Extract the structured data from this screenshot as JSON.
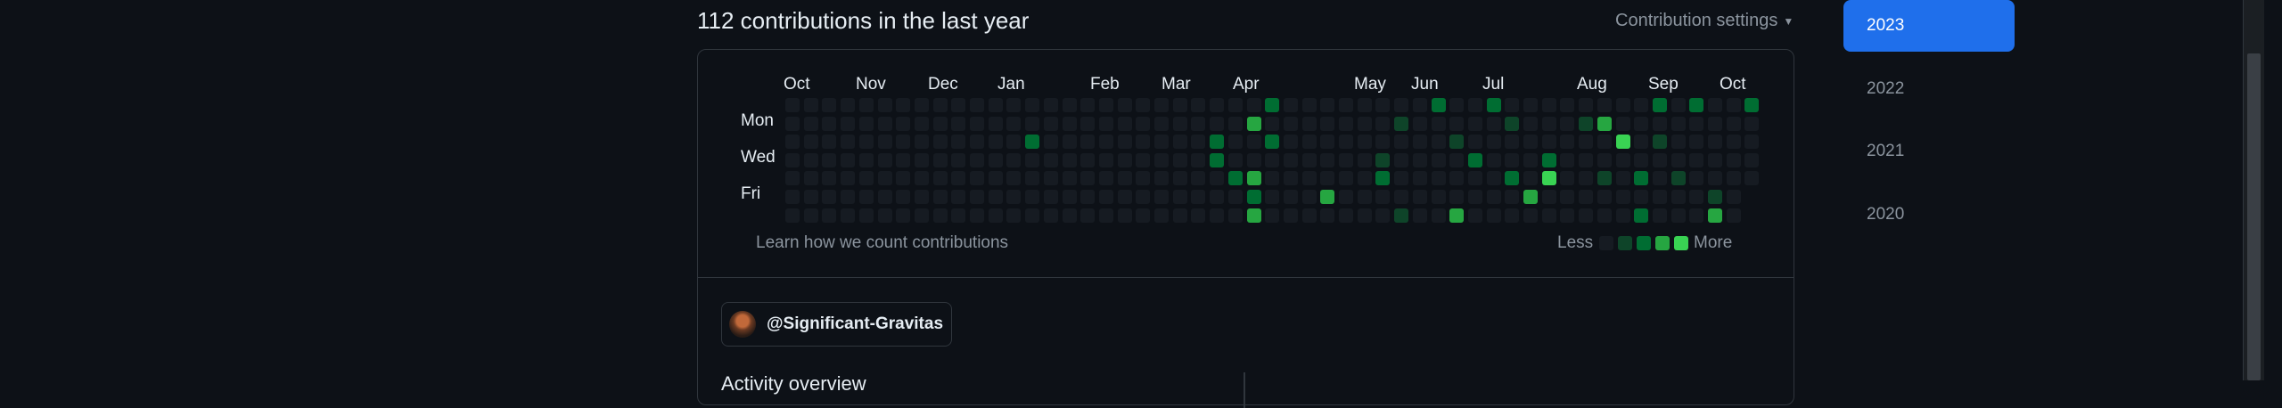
{
  "header": {
    "contributions_title": "112 contributions in the last year",
    "settings_label": "Contribution settings"
  },
  "calendar": {
    "months": [
      "Oct",
      "Nov",
      "Dec",
      "Jan",
      "Feb",
      "Mar",
      "Apr",
      "May",
      "Jun",
      "Jul",
      "Aug",
      "Sep",
      "Oct"
    ],
    "day_labels": [
      "Mon",
      "Wed",
      "Fri"
    ],
    "learn_link": "Learn how we count contributions",
    "legend_less": "Less",
    "legend_more": "More",
    "levels": [
      "#161b22",
      "#0e4429",
      "#006d32",
      "#26a641",
      "#39d353"
    ],
    "contributions": [
      {
        "week": 26,
        "day": 0,
        "level": 2
      },
      {
        "week": 35,
        "day": 0,
        "level": 2
      },
      {
        "week": 38,
        "day": 0,
        "level": 2
      },
      {
        "week": 47,
        "day": 0,
        "level": 2
      },
      {
        "week": 49,
        "day": 0,
        "level": 2
      },
      {
        "week": 52,
        "day": 0,
        "level": 2
      },
      {
        "week": 25,
        "day": 1,
        "level": 3
      },
      {
        "week": 33,
        "day": 1,
        "level": 1
      },
      {
        "week": 39,
        "day": 1,
        "level": 1
      },
      {
        "week": 43,
        "day": 1,
        "level": 1
      },
      {
        "week": 44,
        "day": 1,
        "level": 3
      },
      {
        "week": 13,
        "day": 2,
        "level": 2
      },
      {
        "week": 23,
        "day": 2,
        "level": 2
      },
      {
        "week": 26,
        "day": 2,
        "level": 2
      },
      {
        "week": 36,
        "day": 2,
        "level": 1
      },
      {
        "week": 45,
        "day": 2,
        "level": 4
      },
      {
        "week": 47,
        "day": 2,
        "level": 1
      },
      {
        "week": 23,
        "day": 3,
        "level": 2
      },
      {
        "week": 32,
        "day": 3,
        "level": 1
      },
      {
        "week": 37,
        "day": 3,
        "level": 2
      },
      {
        "week": 41,
        "day": 3,
        "level": 2
      },
      {
        "week": 24,
        "day": 4,
        "level": 2
      },
      {
        "week": 25,
        "day": 4,
        "level": 3
      },
      {
        "week": 32,
        "day": 4,
        "level": 2
      },
      {
        "week": 39,
        "day": 4,
        "level": 2
      },
      {
        "week": 41,
        "day": 4,
        "level": 4
      },
      {
        "week": 44,
        "day": 4,
        "level": 1
      },
      {
        "week": 46,
        "day": 4,
        "level": 2
      },
      {
        "week": 48,
        "day": 4,
        "level": 1
      },
      {
        "week": 25,
        "day": 5,
        "level": 2
      },
      {
        "week": 29,
        "day": 5,
        "level": 3
      },
      {
        "week": 40,
        "day": 5,
        "level": 3
      },
      {
        "week": 50,
        "day": 5,
        "level": 1
      },
      {
        "week": 25,
        "day": 6,
        "level": 3
      },
      {
        "week": 33,
        "day": 6,
        "level": 1
      },
      {
        "week": 36,
        "day": 6,
        "level": 3
      },
      {
        "week": 46,
        "day": 6,
        "level": 2
      },
      {
        "week": 50,
        "day": 6,
        "level": 3
      }
    ]
  },
  "profile": {
    "handle": "@Significant-Gravitas",
    "activity_heading": "Activity overview"
  },
  "years": [
    "2023",
    "2022",
    "2021",
    "2020"
  ],
  "selected_year": "2023"
}
